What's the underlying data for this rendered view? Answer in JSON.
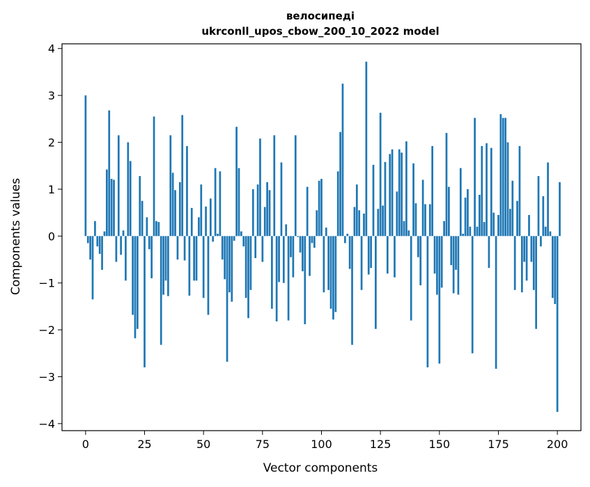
{
  "chart_data": {
    "type": "bar",
    "title_line1": "велосипеді",
    "title_line2": "ukrconll_upos_cbow_200_10_2022 model",
    "xlabel": "Vector components",
    "ylabel": "Components values",
    "xlim": [
      -10,
      210
    ],
    "ylim": [
      -4.15,
      4.1
    ],
    "x_ticks": [
      0,
      25,
      50,
      75,
      100,
      125,
      150,
      175,
      200
    ],
    "x_tick_labels": [
      "0",
      "25",
      "50",
      "75",
      "100",
      "125",
      "150",
      "175",
      "200"
    ],
    "y_ticks": [
      -4,
      -3,
      -2,
      -1,
      0,
      1,
      2,
      3,
      4
    ],
    "y_tick_labels": [
      "−4",
      "−3",
      "−2",
      "−1",
      "0",
      "1",
      "2",
      "3",
      "4"
    ],
    "bar_color": "#1f77b4",
    "grid": false,
    "values": [
      3.0,
      -0.15,
      -0.5,
      -1.35,
      0.32,
      -0.22,
      -0.38,
      -0.72,
      0.1,
      1.42,
      2.68,
      1.22,
      1.2,
      -0.55,
      2.15,
      -0.4,
      0.12,
      -0.95,
      2.0,
      1.6,
      -1.68,
      -2.18,
      -1.98,
      1.28,
      0.75,
      -2.8,
      0.4,
      -0.28,
      -0.9,
      2.55,
      0.32,
      0.3,
      -2.32,
      -1.25,
      -0.95,
      -1.28,
      2.15,
      1.35,
      0.98,
      -0.5,
      1.15,
      2.58,
      -0.52,
      1.92,
      -1.27,
      0.6,
      -0.95,
      -0.95,
      0.4,
      1.1,
      -1.32,
      0.63,
      -1.68,
      0.8,
      -0.12,
      1.45,
      0.05,
      1.38,
      -0.5,
      -0.92,
      -2.68,
      -1.2,
      -1.4,
      -0.1,
      2.33,
      1.45,
      0.1,
      -0.22,
      -1.32,
      -1.75,
      -1.15,
      1.0,
      -0.47,
      1.1,
      2.08,
      -0.55,
      0.62,
      1.15,
      0.98,
      -1.55,
      2.15,
      -1.82,
      -0.98,
      1.57,
      -1.0,
      0.25,
      -1.8,
      -0.45,
      -0.88,
      2.15,
      -0.02,
      -0.35,
      -0.75,
      -1.88,
      1.05,
      -0.85,
      -0.15,
      -0.25,
      0.55,
      1.18,
      1.22,
      -1.2,
      0.18,
      -1.15,
      -1.55,
      -1.78,
      -1.62,
      1.38,
      2.22,
      3.25,
      -0.15,
      0.05,
      -0.7,
      -2.32,
      0.62,
      1.1,
      0.55,
      -1.15,
      0.48,
      3.72,
      -0.82,
      -0.68,
      1.52,
      -1.98,
      0.58,
      2.63,
      0.65,
      1.58,
      -0.8,
      1.75,
      1.85,
      -0.88,
      0.95,
      1.85,
      1.78,
      0.32,
      2.02,
      0.12,
      -1.8,
      1.55,
      0.7,
      -0.45,
      -1.05,
      1.2,
      0.68,
      -2.8,
      0.68,
      1.92,
      -0.8,
      -1.25,
      -2.72,
      -1.1,
      0.32,
      2.2,
      1.05,
      -0.62,
      -1.22,
      -0.72,
      -1.25,
      1.45,
      0.05,
      0.82,
      1.0,
      0.2,
      -2.5,
      2.52,
      0.2,
      0.88,
      1.92,
      0.3,
      1.98,
      -0.68,
      1.88,
      0.5,
      -2.83,
      0.45,
      2.6,
      2.52,
      2.52,
      2.0,
      0.58,
      1.18,
      -1.15,
      0.75,
      1.92,
      -1.2,
      -0.55,
      -0.95,
      0.45,
      -0.55,
      -1.15,
      -1.98,
      1.28,
      -0.22,
      0.85,
      0.2,
      1.57,
      0.1,
      -1.32,
      -1.45,
      -3.75,
      1.15
    ]
  }
}
